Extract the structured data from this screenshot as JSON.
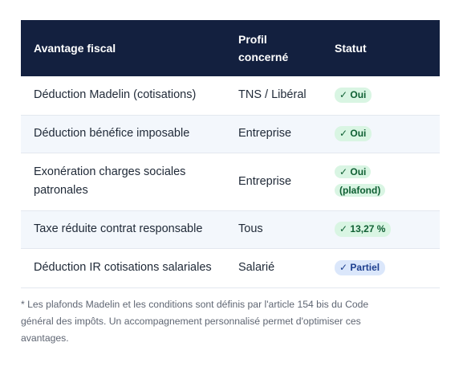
{
  "table": {
    "headers": {
      "col1": "Avantage fiscal",
      "col2_line1": "Profil",
      "col2_line2": "concerné",
      "col3": "Statut"
    },
    "rows": [
      {
        "avantage": "Déduction Madelin (cotisations)",
        "profil": "TNS / Libéral",
        "statut": "✓ Oui"
      },
      {
        "avantage": "Déduction bénéfice imposable",
        "profil": "Entreprise",
        "statut": "✓ Oui"
      },
      {
        "avantage_line1": "Exonération charges sociales",
        "avantage_line2": "patronales",
        "profil": "Entreprise",
        "statut_line1": "✓ Oui",
        "statut_line2": "(plafond)"
      },
      {
        "avantage": "Taxe réduite contrat responsable",
        "profil": "Tous",
        "statut": "✓ 13,27 %"
      },
      {
        "avantage": "Déduction IR cotisations salariales",
        "profil": "Salarié",
        "statut": "✓ Partiel"
      }
    ]
  },
  "note": {
    "line1": "* Les plafonds Madelin et les conditions sont définis par l'article 154 bis du Code",
    "line2": "général des impôts. Un accompagnement personnalisé permet d'optimiser ces",
    "line3": "avantages."
  },
  "colors": {
    "header_bg": "#13203f",
    "badge_green_bg": "#d9f5e3",
    "badge_green_text": "#0f5f33",
    "badge_blue_bg": "#dbe7fb",
    "badge_blue_text": "#1d3f8f",
    "alt_row_bg": "#f3f7fc"
  }
}
